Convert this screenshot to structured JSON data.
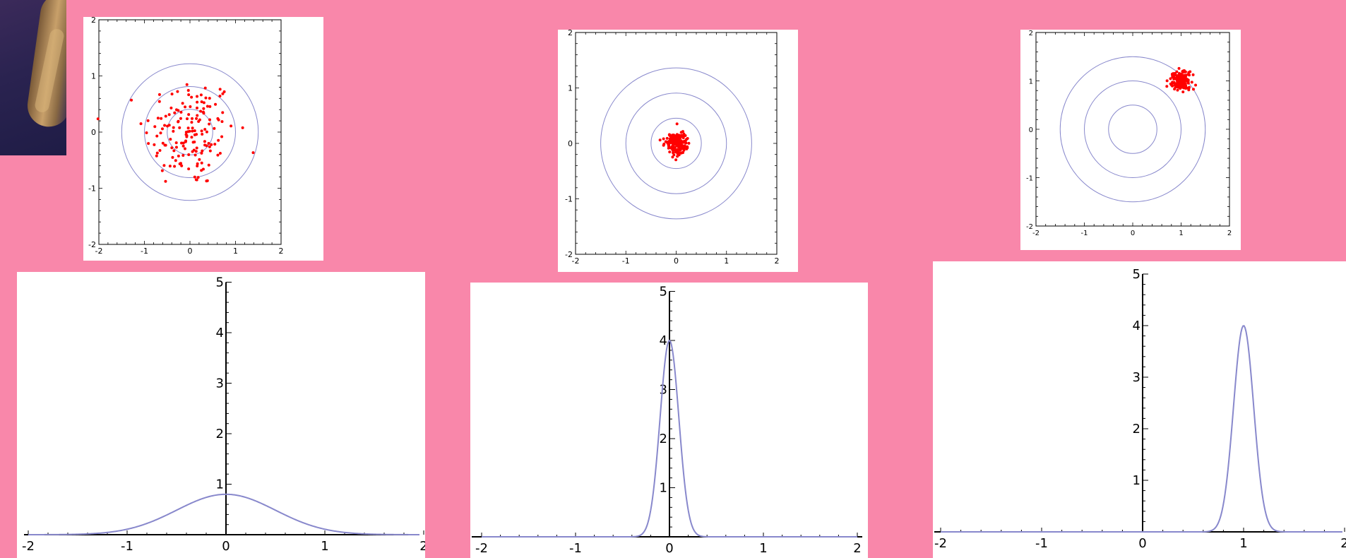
{
  "background_color": "#f987aa",
  "corner_image": {
    "icon": "painting-fragment-image"
  },
  "chart_data": [
    {
      "id": "target-1",
      "type": "scatter",
      "title": "",
      "xlim": [
        -2,
        2
      ],
      "ylim": [
        -2,
        2
      ],
      "x_ticks": [
        "-2",
        "-1",
        "0",
        "1",
        "2"
      ],
      "y_ticks": [
        "-2",
        "-1",
        "0",
        "1",
        "2"
      ],
      "circle_radii": [
        0.5,
        1,
        1.5
      ],
      "circle_color": "#8888cc",
      "point_color": "#ff0000",
      "cloud": {
        "center": [
          0,
          0
        ],
        "spread": 0.5,
        "count": 160
      }
    },
    {
      "id": "target-2",
      "type": "scatter",
      "title": "",
      "xlim": [
        -2,
        2
      ],
      "ylim": [
        -2,
        2
      ],
      "x_ticks": [
        "-2",
        "-1",
        "0",
        "1",
        "2"
      ],
      "y_ticks": [
        "-2",
        "-1",
        "0",
        "1",
        "2"
      ],
      "circle_radii": [
        0.5,
        1,
        1.5
      ],
      "circle_color": "#8888cc",
      "point_color": "#ff0000",
      "cloud": {
        "center": [
          0,
          0
        ],
        "spread": 0.1,
        "count": 170
      }
    },
    {
      "id": "target-3",
      "type": "scatter",
      "title": "",
      "xlim": [
        -2,
        2
      ],
      "ylim": [
        -2,
        2
      ],
      "x_ticks": [
        "-2",
        "-1",
        "0",
        "1",
        "2"
      ],
      "y_ticks": [
        "-2",
        "-1",
        "0",
        "1",
        "2"
      ],
      "circle_radii": [
        0.5,
        1,
        1.5
      ],
      "circle_color": "#8888cc",
      "point_color": "#ff0000",
      "cloud": {
        "center": [
          1,
          1
        ],
        "spread": 0.1,
        "count": 170
      }
    },
    {
      "id": "density-1",
      "type": "line",
      "title": "",
      "xlim": [
        -2,
        2
      ],
      "ylim": [
        0,
        5
      ],
      "x_ticks": [
        "-2",
        "-1",
        "0",
        "1",
        "2"
      ],
      "y_ticks": [
        "1",
        "2",
        "3",
        "4",
        "5"
      ],
      "line_color": "#8888cc",
      "curve": {
        "mean": 0,
        "sd": 0.5,
        "peak": 0.8
      }
    },
    {
      "id": "density-2",
      "type": "line",
      "title": "",
      "xlim": [
        -2,
        2
      ],
      "ylim": [
        0,
        5
      ],
      "x_ticks": [
        "-2",
        "-1",
        "0",
        "1",
        "2"
      ],
      "y_ticks": [
        "1",
        "2",
        "3",
        "4",
        "5"
      ],
      "line_color": "#8888cc",
      "curve": {
        "mean": 0,
        "sd": 0.1,
        "peak": 4.0
      }
    },
    {
      "id": "density-3",
      "type": "line",
      "title": "",
      "xlim": [
        -2,
        2
      ],
      "ylim": [
        0,
        5
      ],
      "x_ticks": [
        "-2",
        "-1",
        "0",
        "1",
        "2"
      ],
      "y_ticks": [
        "1",
        "2",
        "3",
        "4",
        "5"
      ],
      "line_color": "#8888cc",
      "curve": {
        "mean": 1,
        "sd": 0.1,
        "peak": 4.0
      }
    }
  ]
}
